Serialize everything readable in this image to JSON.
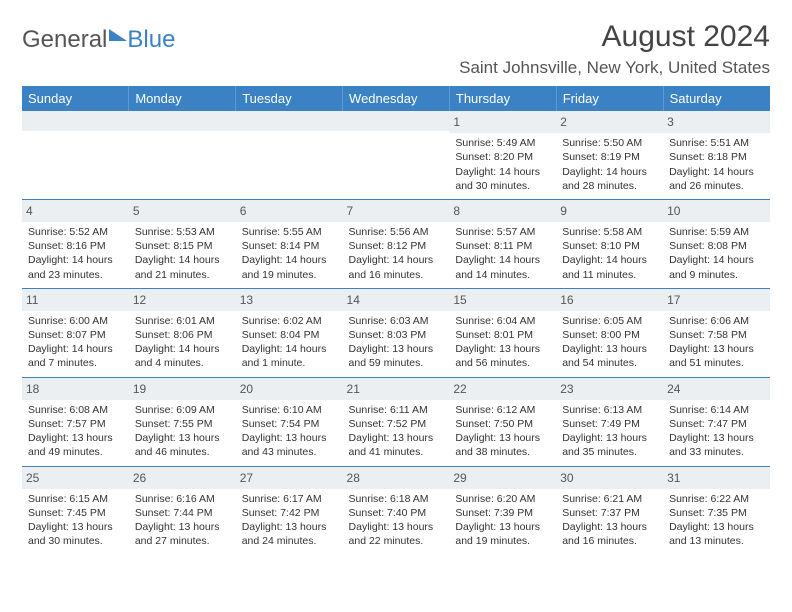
{
  "logo": {
    "part1": "General",
    "part2": "Blue"
  },
  "header": {
    "month_title": "August 2024",
    "location": "Saint Johnsville, New York, United States"
  },
  "colors": {
    "header_bg": "#3b82c4",
    "header_text": "#ffffff",
    "daynum_bg": "#eceff1",
    "row_border": "#3b82c4",
    "body_text": "#333333",
    "page_bg": "#ffffff"
  },
  "weekdays": [
    "Sunday",
    "Monday",
    "Tuesday",
    "Wednesday",
    "Thursday",
    "Friday",
    "Saturday"
  ],
  "weeks": [
    [
      {
        "day": "",
        "sunrise": "",
        "sunset": "",
        "daylight": ""
      },
      {
        "day": "",
        "sunrise": "",
        "sunset": "",
        "daylight": ""
      },
      {
        "day": "",
        "sunrise": "",
        "sunset": "",
        "daylight": ""
      },
      {
        "day": "",
        "sunrise": "",
        "sunset": "",
        "daylight": ""
      },
      {
        "day": "1",
        "sunrise": "Sunrise: 5:49 AM",
        "sunset": "Sunset: 8:20 PM",
        "daylight": "Daylight: 14 hours and 30 minutes."
      },
      {
        "day": "2",
        "sunrise": "Sunrise: 5:50 AM",
        "sunset": "Sunset: 8:19 PM",
        "daylight": "Daylight: 14 hours and 28 minutes."
      },
      {
        "day": "3",
        "sunrise": "Sunrise: 5:51 AM",
        "sunset": "Sunset: 8:18 PM",
        "daylight": "Daylight: 14 hours and 26 minutes."
      }
    ],
    [
      {
        "day": "4",
        "sunrise": "Sunrise: 5:52 AM",
        "sunset": "Sunset: 8:16 PM",
        "daylight": "Daylight: 14 hours and 23 minutes."
      },
      {
        "day": "5",
        "sunrise": "Sunrise: 5:53 AM",
        "sunset": "Sunset: 8:15 PM",
        "daylight": "Daylight: 14 hours and 21 minutes."
      },
      {
        "day": "6",
        "sunrise": "Sunrise: 5:55 AM",
        "sunset": "Sunset: 8:14 PM",
        "daylight": "Daylight: 14 hours and 19 minutes."
      },
      {
        "day": "7",
        "sunrise": "Sunrise: 5:56 AM",
        "sunset": "Sunset: 8:12 PM",
        "daylight": "Daylight: 14 hours and 16 minutes."
      },
      {
        "day": "8",
        "sunrise": "Sunrise: 5:57 AM",
        "sunset": "Sunset: 8:11 PM",
        "daylight": "Daylight: 14 hours and 14 minutes."
      },
      {
        "day": "9",
        "sunrise": "Sunrise: 5:58 AM",
        "sunset": "Sunset: 8:10 PM",
        "daylight": "Daylight: 14 hours and 11 minutes."
      },
      {
        "day": "10",
        "sunrise": "Sunrise: 5:59 AM",
        "sunset": "Sunset: 8:08 PM",
        "daylight": "Daylight: 14 hours and 9 minutes."
      }
    ],
    [
      {
        "day": "11",
        "sunrise": "Sunrise: 6:00 AM",
        "sunset": "Sunset: 8:07 PM",
        "daylight": "Daylight: 14 hours and 7 minutes."
      },
      {
        "day": "12",
        "sunrise": "Sunrise: 6:01 AM",
        "sunset": "Sunset: 8:06 PM",
        "daylight": "Daylight: 14 hours and 4 minutes."
      },
      {
        "day": "13",
        "sunrise": "Sunrise: 6:02 AM",
        "sunset": "Sunset: 8:04 PM",
        "daylight": "Daylight: 14 hours and 1 minute."
      },
      {
        "day": "14",
        "sunrise": "Sunrise: 6:03 AM",
        "sunset": "Sunset: 8:03 PM",
        "daylight": "Daylight: 13 hours and 59 minutes."
      },
      {
        "day": "15",
        "sunrise": "Sunrise: 6:04 AM",
        "sunset": "Sunset: 8:01 PM",
        "daylight": "Daylight: 13 hours and 56 minutes."
      },
      {
        "day": "16",
        "sunrise": "Sunrise: 6:05 AM",
        "sunset": "Sunset: 8:00 PM",
        "daylight": "Daylight: 13 hours and 54 minutes."
      },
      {
        "day": "17",
        "sunrise": "Sunrise: 6:06 AM",
        "sunset": "Sunset: 7:58 PM",
        "daylight": "Daylight: 13 hours and 51 minutes."
      }
    ],
    [
      {
        "day": "18",
        "sunrise": "Sunrise: 6:08 AM",
        "sunset": "Sunset: 7:57 PM",
        "daylight": "Daylight: 13 hours and 49 minutes."
      },
      {
        "day": "19",
        "sunrise": "Sunrise: 6:09 AM",
        "sunset": "Sunset: 7:55 PM",
        "daylight": "Daylight: 13 hours and 46 minutes."
      },
      {
        "day": "20",
        "sunrise": "Sunrise: 6:10 AM",
        "sunset": "Sunset: 7:54 PM",
        "daylight": "Daylight: 13 hours and 43 minutes."
      },
      {
        "day": "21",
        "sunrise": "Sunrise: 6:11 AM",
        "sunset": "Sunset: 7:52 PM",
        "daylight": "Daylight: 13 hours and 41 minutes."
      },
      {
        "day": "22",
        "sunrise": "Sunrise: 6:12 AM",
        "sunset": "Sunset: 7:50 PM",
        "daylight": "Daylight: 13 hours and 38 minutes."
      },
      {
        "day": "23",
        "sunrise": "Sunrise: 6:13 AM",
        "sunset": "Sunset: 7:49 PM",
        "daylight": "Daylight: 13 hours and 35 minutes."
      },
      {
        "day": "24",
        "sunrise": "Sunrise: 6:14 AM",
        "sunset": "Sunset: 7:47 PM",
        "daylight": "Daylight: 13 hours and 33 minutes."
      }
    ],
    [
      {
        "day": "25",
        "sunrise": "Sunrise: 6:15 AM",
        "sunset": "Sunset: 7:45 PM",
        "daylight": "Daylight: 13 hours and 30 minutes."
      },
      {
        "day": "26",
        "sunrise": "Sunrise: 6:16 AM",
        "sunset": "Sunset: 7:44 PM",
        "daylight": "Daylight: 13 hours and 27 minutes."
      },
      {
        "day": "27",
        "sunrise": "Sunrise: 6:17 AM",
        "sunset": "Sunset: 7:42 PM",
        "daylight": "Daylight: 13 hours and 24 minutes."
      },
      {
        "day": "28",
        "sunrise": "Sunrise: 6:18 AM",
        "sunset": "Sunset: 7:40 PM",
        "daylight": "Daylight: 13 hours and 22 minutes."
      },
      {
        "day": "29",
        "sunrise": "Sunrise: 6:20 AM",
        "sunset": "Sunset: 7:39 PM",
        "daylight": "Daylight: 13 hours and 19 minutes."
      },
      {
        "day": "30",
        "sunrise": "Sunrise: 6:21 AM",
        "sunset": "Sunset: 7:37 PM",
        "daylight": "Daylight: 13 hours and 16 minutes."
      },
      {
        "day": "31",
        "sunrise": "Sunrise: 6:22 AM",
        "sunset": "Sunset: 7:35 PM",
        "daylight": "Daylight: 13 hours and 13 minutes."
      }
    ]
  ]
}
